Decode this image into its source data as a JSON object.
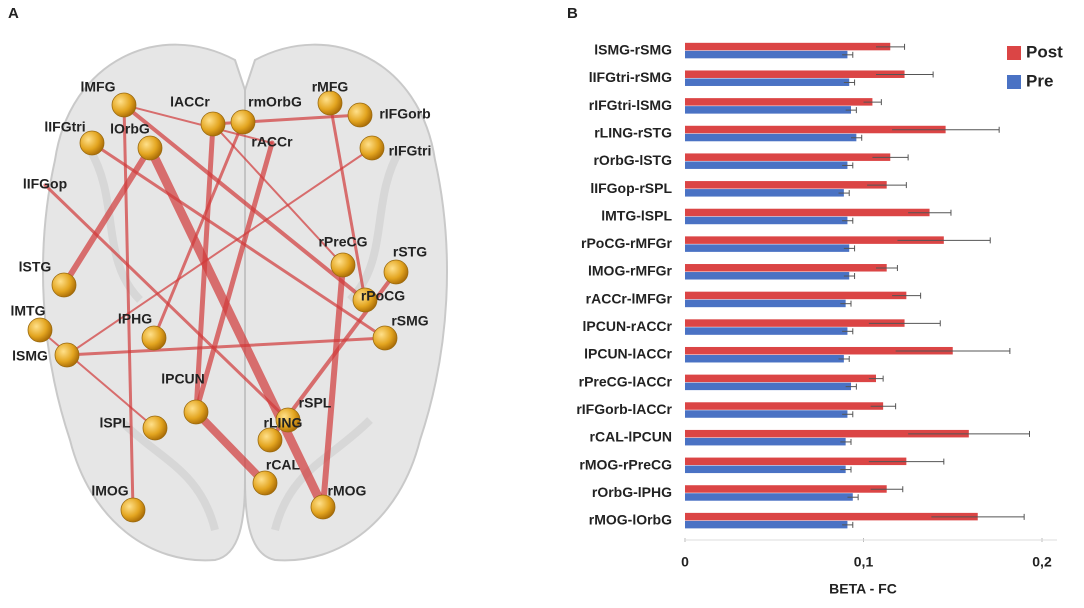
{
  "panel_a": {
    "label": "A",
    "nodes": [
      "lMFG",
      "lACCr",
      "rmOrbG",
      "rMFG",
      "rIFGorb",
      "lIFGtri",
      "lOrbG",
      "rACCr",
      "rIFGtri",
      "lIFGop",
      "rPreCG",
      "rSTG",
      "lSTG",
      "rPoCG",
      "lMTG",
      "rSMG",
      "lPHG",
      "lSMG",
      "lPCUN",
      "rSPL",
      "lSPL",
      "rLING",
      "rCAL",
      "lMOG",
      "rMOG"
    ]
  },
  "panel_b_label": "B",
  "chart_data": {
    "type": "hbar",
    "categories": [
      "lSMG-rSMG",
      "lIFGtri-rSMG",
      "rIFGtri-lSMG",
      "rLING-rSTG",
      "rOrbG-lSTG",
      "lIFGop-rSPL",
      "lMTG-lSPL",
      "rPoCG-rMFGr",
      "lMOG-rMFGr",
      "rACCr-lMFGr",
      "lPCUN-rACCr",
      "lPCUN-lACCr",
      "rPreCG-lACCr",
      "rIFGorb-lACCr",
      "rCAL-lPCUN",
      "rMOG-rPreCG",
      "rOrbG-lPHG",
      "rMOG-lOrbG"
    ],
    "series": [
      {
        "name": "Post",
        "color": "#db4545",
        "values": [
          0.115,
          0.123,
          0.105,
          0.146,
          0.115,
          0.113,
          0.137,
          0.145,
          0.113,
          0.124,
          0.123,
          0.15,
          0.107,
          0.111,
          0.159,
          0.124,
          0.113,
          0.164
        ],
        "errors": [
          0.008,
          0.016,
          0.005,
          0.03,
          0.01,
          0.011,
          0.012,
          0.026,
          0.006,
          0.008,
          0.02,
          0.032,
          0.004,
          0.007,
          0.034,
          0.021,
          0.009,
          0.026
        ]
      },
      {
        "name": "Pre",
        "color": "#4a72c4",
        "values": [
          0.091,
          0.092,
          0.093,
          0.096,
          0.091,
          0.089,
          0.091,
          0.092,
          0.092,
          0.09,
          0.091,
          0.089,
          0.093,
          0.091,
          0.09,
          0.09,
          0.094,
          0.091
        ],
        "errors": [
          0.003,
          0.003,
          0.003,
          0.003,
          0.003,
          0.003,
          0.003,
          0.003,
          0.003,
          0.003,
          0.003,
          0.003,
          0.003,
          0.003,
          0.003,
          0.003,
          0.003,
          0.003
        ]
      }
    ],
    "xlabel": "BETA - FC",
    "xlim": [
      0,
      0.2
    ],
    "xticks": [
      0,
      {
        "value": 0.1,
        "label": "0,1"
      },
      {
        "value": 0.2,
        "label": "0,2"
      }
    ],
    "legend": "top-right"
  }
}
